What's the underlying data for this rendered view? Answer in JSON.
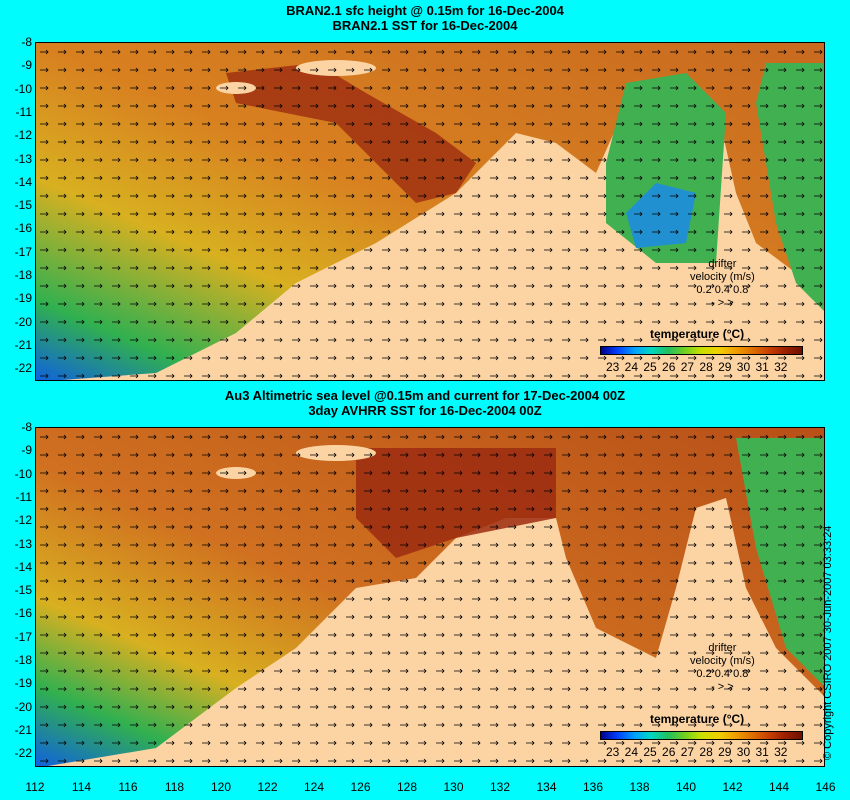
{
  "top": {
    "title1": "BRAN2.1 sfc height @ 0.15m for 16-Dec-2004",
    "title2": "BRAN2.1 SST for 16-Dec-2004"
  },
  "bottom": {
    "title1": "Au3 Altimetric sea level  @0.15m and current for 17-Dec-2004 00Z",
    "title2": "3day AVHRR SST for 16-Dec-2004 00Z"
  },
  "y_labels": [
    "-8",
    "-9",
    "-10",
    "-11",
    "-12",
    "-13",
    "-14",
    "-15",
    "-16",
    "-17",
    "-18",
    "-19",
    "-20",
    "-21",
    "-22"
  ],
  "x_labels": [
    "112",
    "114",
    "116",
    "118",
    "120",
    "122",
    "124",
    "126",
    "128",
    "130",
    "132",
    "134",
    "136",
    "138",
    "140",
    "142",
    "144",
    "146"
  ],
  "legend": {
    "title": "temperature (°C)",
    "ticks": "23 24 25 26 27 28 29 30 31 32",
    "drifter1": "drifter",
    "drifter2": "velocity (m/s)",
    "drifter3": "0.2  0.4  0.8",
    "drifter4": "-     >     >"
  },
  "copyright": "© Copyright CSIRO 2007   30-Jun-2007 03:33:24",
  "colors": {
    "land": "#fcd4a4",
    "background": "#00fcfc",
    "warm": "#c86a20",
    "hot": "#9c2c10",
    "cool": "#30b050",
    "cold": "#1060e0"
  }
}
